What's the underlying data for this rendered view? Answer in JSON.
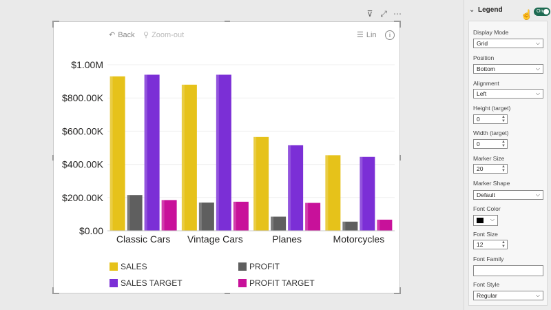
{
  "visual_header": {
    "filter_icon": "filter-icon",
    "focus_icon": "focus-mode-icon",
    "more_icon": "more-options-icon"
  },
  "toolbar": {
    "back_label": "Back",
    "zoom_label": "Zoom-out",
    "scale_label": "Lin",
    "info_glyph": "i"
  },
  "chart_data": {
    "type": "bar",
    "categories": [
      "Classic Cars",
      "Vintage Cars",
      "Planes",
      "Motorcycles"
    ],
    "series": [
      {
        "name": "SALES",
        "color": "#e6c21a",
        "values": [
          930000,
          880000,
          565000,
          455000
        ]
      },
      {
        "name": "PROFIT",
        "color": "#5f5f5f",
        "values": [
          215000,
          170000,
          85000,
          55000
        ]
      },
      {
        "name": "SALES TARGET",
        "color": "#7b2fd6",
        "values": [
          940000,
          940000,
          515000,
          445000
        ]
      },
      {
        "name": "PROFIT TARGET",
        "color": "#c8119a",
        "values": [
          185000,
          175000,
          168000,
          67000
        ]
      }
    ],
    "yticks": [
      "$0.00",
      "$200.00K",
      "$400.00K",
      "$600.00K",
      "$800.00K",
      "$1.00M"
    ],
    "ylim": [
      0,
      1000000
    ],
    "grid": true,
    "legend_position": "bottom"
  },
  "pane": {
    "section_title": "Legend",
    "toggle_label": "On",
    "display_mode": {
      "label": "Display Mode",
      "value": "Grid"
    },
    "position": {
      "label": "Position",
      "value": "Bottom"
    },
    "alignment": {
      "label": "Alignment",
      "value": "Left"
    },
    "height": {
      "label": "Height (target)",
      "value": "0"
    },
    "width": {
      "label": "Width (target)",
      "value": "0"
    },
    "marker_size": {
      "label": "Marker Size",
      "value": "20"
    },
    "marker_shape": {
      "label": "Marker Shape",
      "value": "Default"
    },
    "font_color": {
      "label": "Font Color",
      "value": "#000000"
    },
    "font_size": {
      "label": "Font Size",
      "value": "12"
    },
    "font_family": {
      "label": "Font Family",
      "value": ""
    },
    "font_style": {
      "label": "Font Style",
      "value": "Regular"
    }
  }
}
